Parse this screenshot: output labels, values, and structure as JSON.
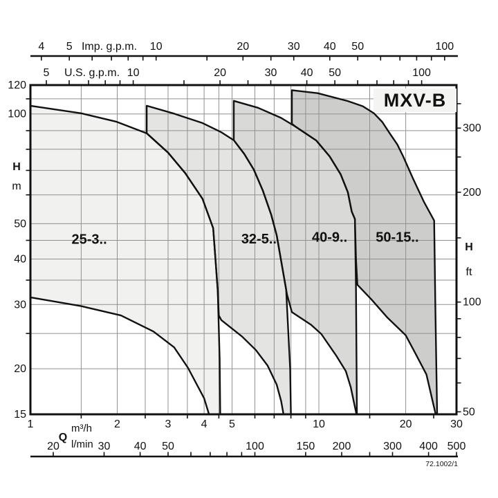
{
  "chart_data": {
    "type": "area",
    "title": "MXV-B",
    "code": "72.1002/1",
    "x_axis": {
      "scale": "log",
      "unit": "m3/h",
      "range": [
        1,
        30
      ]
    },
    "y_axis": {
      "scale": "log",
      "unit": "m",
      "range": [
        15,
        120
      ]
    },
    "top_axis_imp": {
      "label": "Imp. g.p.m.",
      "gpm_per_m3h": 3.666,
      "labeled": [
        4,
        5,
        10,
        20,
        30,
        40,
        50,
        100
      ],
      "minor": [
        6,
        7,
        8,
        9,
        15,
        25,
        60,
        70,
        80,
        90
      ]
    },
    "top_axis_us": {
      "label": "U.S. g.p.m.",
      "gpm_per_m3h": 4.403,
      "labeled": [
        5,
        10,
        20,
        30,
        40,
        50,
        100
      ],
      "minor": [
        6,
        7,
        8,
        9,
        15,
        25,
        60,
        70,
        80,
        90
      ]
    },
    "bottom_axis_m3h": {
      "label": "m³/h",
      "labeled": [
        1,
        2,
        3,
        4,
        5,
        10,
        20,
        30
      ],
      "minor": [
        1.5,
        2.5,
        3.5,
        4.5,
        6,
        7,
        8,
        9,
        15,
        25
      ]
    },
    "bottom_axis_lmin": {
      "label": "l/min",
      "lmin_per_m3h": 16.667,
      "labeled": [
        20,
        30,
        40,
        50,
        100,
        150,
        200,
        300,
        400,
        500
      ],
      "minor": [
        60,
        70,
        80,
        90,
        250
      ]
    },
    "left_axis": {
      "label": "H",
      "unit": "m",
      "labeled": [
        120,
        100,
        50,
        40,
        30,
        20,
        15
      ],
      "tick_only": [
        25,
        35,
        45,
        60,
        70,
        80,
        90,
        110
      ]
    },
    "right_axis": {
      "label": "H",
      "unit": "ft",
      "m_per_ft": 0.3048,
      "labeled": [
        300,
        200,
        100,
        50
      ],
      "tick_only": [
        60,
        70,
        80,
        90,
        150,
        250,
        350
      ]
    },
    "flow_symbol": "Q",
    "grid": {
      "x_m3h": [
        1.5,
        2,
        2.5,
        3,
        3.5,
        4,
        4.5,
        5,
        6,
        7,
        8,
        9,
        10,
        15,
        20
      ],
      "y_m": [
        20,
        25,
        30,
        35,
        40,
        45,
        50,
        60,
        70,
        80,
        90,
        100,
        110
      ]
    },
    "series": [
      {
        "label": "50-15..",
        "fill": "#cdcdcb",
        "label_at": [
          18.7,
          46
        ],
        "outline": [
          [
            8.06,
            94
          ],
          [
            8.06,
            116.2
          ],
          [
            9.9,
            114
          ],
          [
            12.6,
            108.5
          ],
          [
            14.2,
            105
          ],
          [
            15.5,
            100.5
          ],
          [
            16.6,
            95
          ],
          [
            17.6,
            88.5
          ],
          [
            18.7,
            82.5
          ],
          [
            19.6,
            76.5
          ],
          [
            21.2,
            66.5
          ],
          [
            23.1,
            57.5
          ],
          [
            25.1,
            51
          ],
          [
            25.35,
            29
          ],
          [
            25.7,
            15
          ],
          [
            25.4,
            15
          ],
          [
            23.6,
            19.3
          ],
          [
            21.5,
            22.2
          ],
          [
            20,
            24.7
          ],
          [
            17.3,
            27.6
          ],
          [
            15.2,
            31
          ],
          [
            13.6,
            34
          ],
          [
            13.45,
            40
          ],
          [
            13.33,
            51.5
          ],
          [
            13,
            54
          ],
          [
            12.6,
            61
          ],
          [
            11.9,
            68.3
          ],
          [
            10.9,
            76.5
          ],
          [
            9.8,
            84.5
          ],
          [
            8.3,
            92.3
          ]
        ]
      },
      {
        "label": "40-9..",
        "fill": "#d9d9d7",
        "label_at": [
          10.9,
          46
        ],
        "outline": [
          [
            5.07,
            108.6
          ],
          [
            6.15,
            104
          ],
          [
            7.4,
            97.5
          ],
          [
            8.3,
            92.3
          ],
          [
            9.8,
            84.5
          ],
          [
            10.9,
            76.5
          ],
          [
            11.9,
            68.3
          ],
          [
            12.6,
            61
          ],
          [
            13,
            54
          ],
          [
            13.33,
            51.5
          ],
          [
            13.45,
            33
          ],
          [
            13.55,
            15
          ],
          [
            13.5,
            15
          ],
          [
            12.9,
            17.8
          ],
          [
            12.4,
            19.7
          ],
          [
            11.5,
            21.7
          ],
          [
            10.2,
            24.9
          ],
          [
            9.4,
            26.4
          ],
          [
            8.06,
            28.6
          ],
          [
            7.75,
            32
          ],
          [
            7.14,
            46.5
          ],
          [
            6.83,
            53
          ],
          [
            6.39,
            61.7
          ],
          [
            5.95,
            70.3
          ],
          [
            5.51,
            77.7
          ],
          [
            5.07,
            84.7
          ]
        ]
      },
      {
        "label": "32-5..",
        "fill": "#e4e4e2",
        "label_at": [
          6.2,
          45.5
        ],
        "outline": [
          [
            2.53,
            105.3
          ],
          [
            3.12,
            100.4
          ],
          [
            3.95,
            94.4
          ],
          [
            4.59,
            89.1
          ],
          [
            5.07,
            84.7
          ],
          [
            5.51,
            77.7
          ],
          [
            5.95,
            70.3
          ],
          [
            6.39,
            61.7
          ],
          [
            6.83,
            53
          ],
          [
            7.14,
            46.5
          ],
          [
            7.7,
            33
          ],
          [
            7.95,
            20
          ],
          [
            8.0,
            15
          ],
          [
            7.54,
            15
          ],
          [
            7.4,
            16.3
          ],
          [
            7.14,
            18.1
          ],
          [
            6.64,
            20.4
          ],
          [
            6.05,
            22.5
          ],
          [
            5.42,
            24.5
          ],
          [
            4.59,
            27.2
          ],
          [
            4.5,
            28
          ],
          [
            4.46,
            32.8
          ],
          [
            4.3,
            48.6
          ],
          [
            3.95,
            58.5
          ],
          [
            3.44,
            68.8
          ],
          [
            3.0,
            78.3
          ],
          [
            2.53,
            88.5
          ]
        ]
      },
      {
        "label": "25-3..",
        "fill": "#f1f1ef",
        "label_at": [
          1.6,
          45.4
        ],
        "outline": [
          [
            1,
            105.3
          ],
          [
            1.5,
            100.4
          ],
          [
            1.98,
            95.3
          ],
          [
            2.53,
            88.5
          ],
          [
            3.0,
            78.3
          ],
          [
            3.44,
            68.8
          ],
          [
            3.95,
            58.5
          ],
          [
            4.3,
            48.6
          ],
          [
            4.46,
            32.8
          ],
          [
            4.53,
            21.2
          ],
          [
            4.55,
            15
          ],
          [
            4.16,
            15
          ],
          [
            4.0,
            16.6
          ],
          [
            3.52,
            20.1
          ],
          [
            3.15,
            22.9
          ],
          [
            2.67,
            25.3
          ],
          [
            2.06,
            28
          ],
          [
            1.5,
            29.7
          ],
          [
            1,
            31.4
          ]
        ]
      }
    ]
  },
  "colors": {
    "ink": "#111111",
    "grid": "#909090",
    "badge_bg": "#f4f4f2"
  }
}
